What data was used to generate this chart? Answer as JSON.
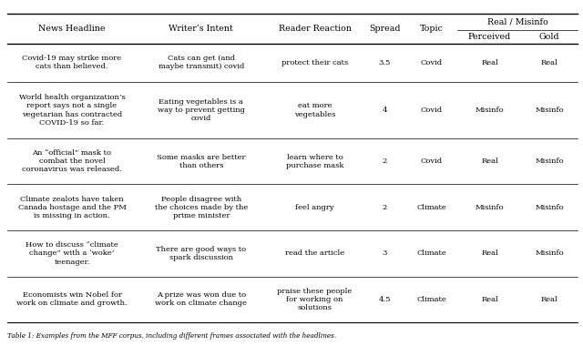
{
  "rows": [
    {
      "headline": "Covid-19 may strike more\ncats than believed.",
      "intent": "Cats can get (and\nmaybe transmit) covid",
      "reaction": "protect their cats",
      "spread": "3.5",
      "topic": "Covid",
      "perceived": "Real",
      "gold": "Real"
    },
    {
      "headline": "World health organization’s\nreport says not a single\nvegetarian has contracted\nCOVID-19 so far.",
      "intent": "Eating vegetables is a\nway to prevent getting\ncovid",
      "reaction": "eat more\nvegetables",
      "spread": "4",
      "topic": "Covid",
      "perceived": "Misinfo",
      "gold": "Misinfo"
    },
    {
      "headline": "An “official” mask to\ncombat the novel\ncoronavirus was released.",
      "intent": "Some masks are better\nthan others",
      "reaction": "learn where to\npurchase mask",
      "spread": "2",
      "topic": "Covid",
      "perceived": "Real",
      "gold": "Misinfo"
    },
    {
      "headline": "Climate zealots have taken\nCanada hostage and the PM\nis missing in action.",
      "intent": "People disagree with\nthe choices made by the\nprime minister",
      "reaction": "feel angry",
      "spread": "2",
      "topic": "Climate",
      "perceived": "Misinfo",
      "gold": "Misinfo"
    },
    {
      "headline": "How to discuss “climate\nchange” with a ‘woke’\nteenager.",
      "intent": "There are good ways to\nspark discussion",
      "reaction": "read the article",
      "spread": "3",
      "topic": "Climate",
      "perceived": "Real",
      "gold": "Misinfo"
    },
    {
      "headline": "Economists win Nobel for\nwork on climate and growth.",
      "intent": "A prize was won due to\nwork on climate change",
      "reaction": "praise these people\nfor working on\nsolutions",
      "spread": "4.5",
      "topic": "Climate",
      "perceived": "Real",
      "gold": "Real"
    }
  ],
  "figsize": [
    6.4,
    3.8
  ],
  "dpi": 100,
  "font_size": 6.0,
  "header_font_size": 6.8,
  "bg_color": "#ffffff",
  "text_color": "#000000",
  "line_color": "#000000",
  "caption": "Table 1: Examples from the MFF corpus, including different frames associated with the headlines."
}
